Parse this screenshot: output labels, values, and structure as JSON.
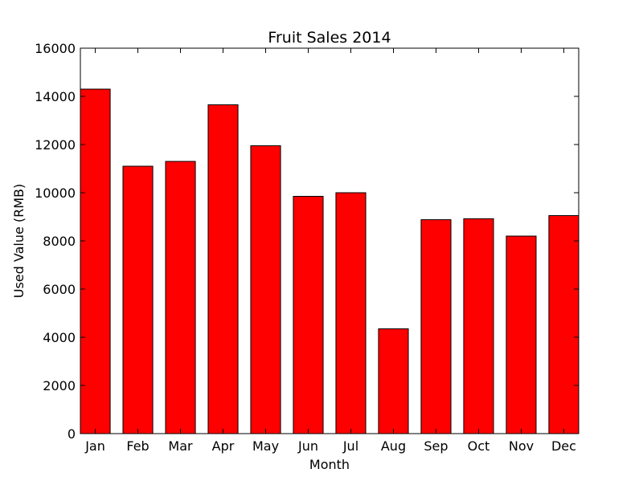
{
  "chart_data": {
    "type": "bar",
    "title": "Fruit Sales 2014",
    "xlabel": "Month",
    "ylabel": "Used Value (RMB)",
    "categories": [
      "Jan",
      "Feb",
      "Mar",
      "Apr",
      "May",
      "Jun",
      "Jul",
      "Aug",
      "Sep",
      "Oct",
      "Nov",
      "Dec"
    ],
    "values": [
      14300,
      11100,
      11300,
      13650,
      11950,
      9850,
      10000,
      4350,
      8880,
      8920,
      8200,
      9050
    ],
    "ylim": [
      0,
      16000
    ],
    "yticks": [
      "0",
      "2000",
      "4000",
      "6000",
      "8000",
      "10000",
      "12000",
      "14000",
      "16000"
    ],
    "bar_color": "#ff0000",
    "edge_color": "#000000",
    "grid": false,
    "legend": "none"
  }
}
